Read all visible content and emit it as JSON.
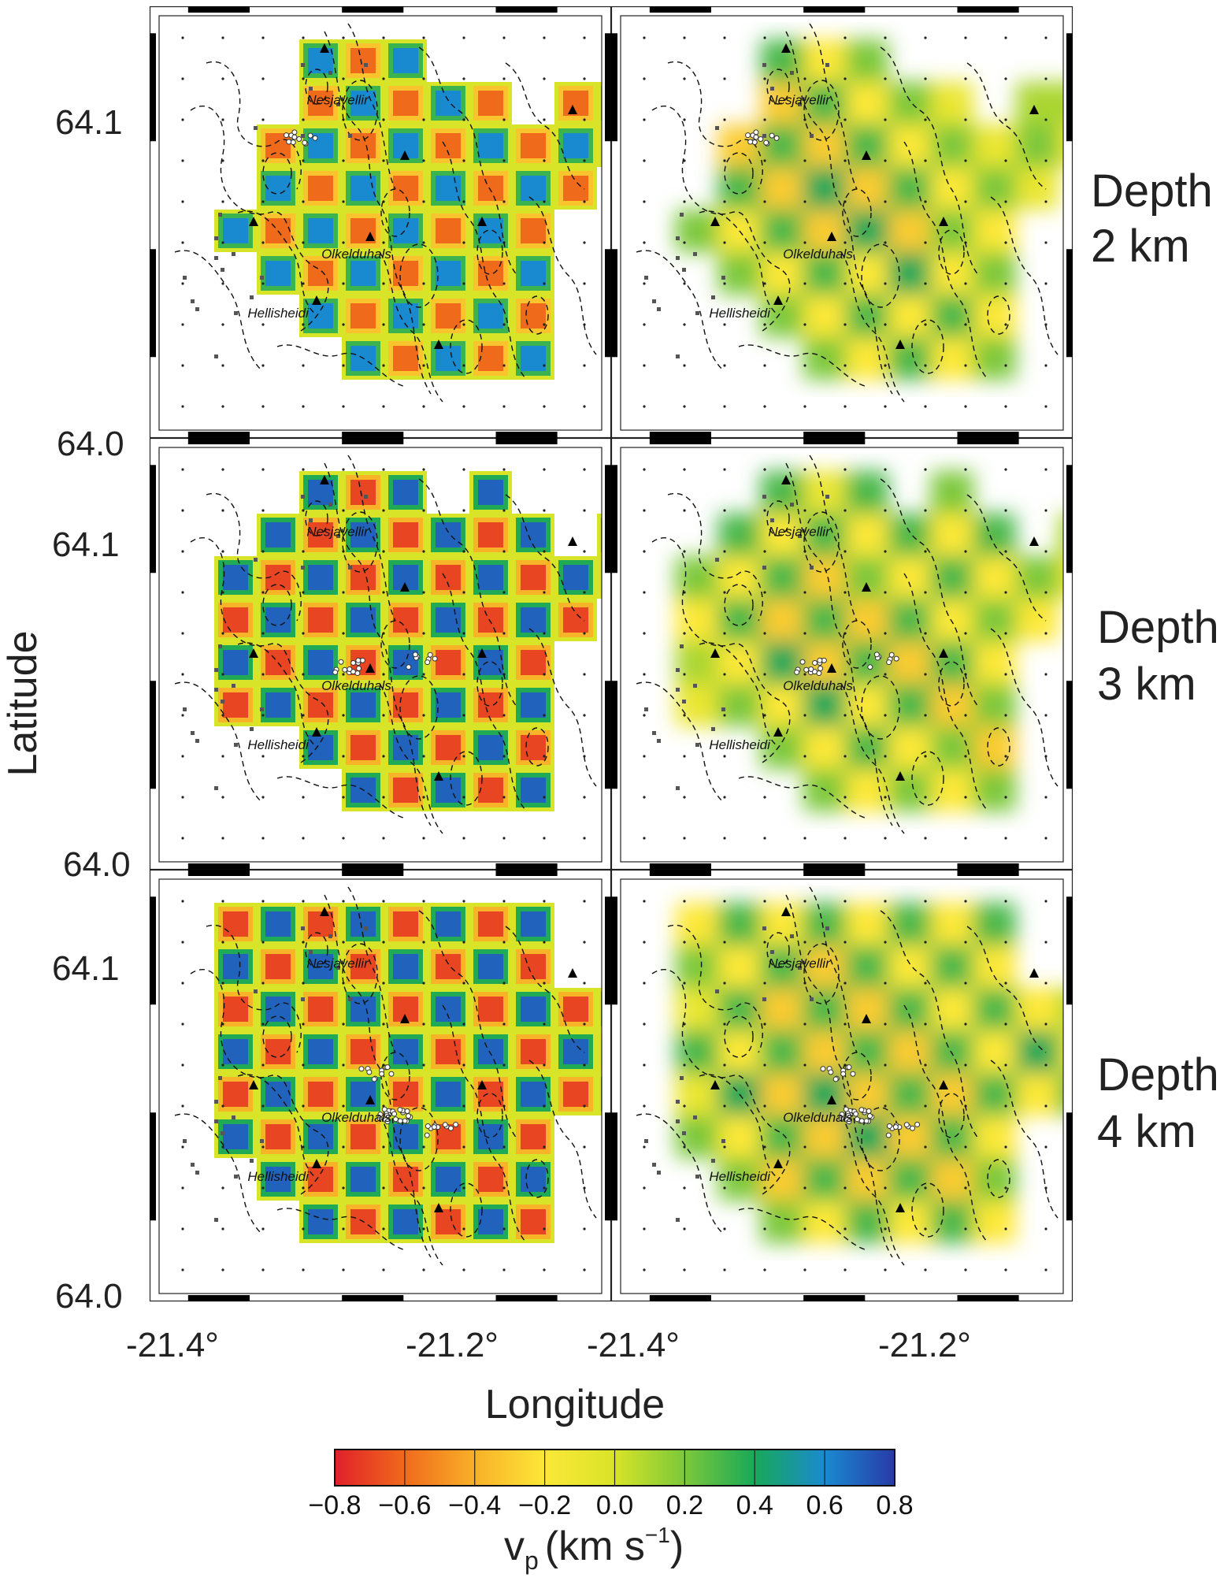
{
  "axes": {
    "ylabel": "Latitude",
    "xlabel": "Longitude",
    "lat_ticks": [
      "64.1",
      "64.0"
    ],
    "lon_ticks": [
      "-21.4°",
      "-21.2°"
    ],
    "lat_range": [
      64.0,
      64.14
    ],
    "lon_range": [
      -21.4,
      -21.1
    ]
  },
  "rows": [
    {
      "depth_label_1": "Depth",
      "depth_label_2": "2 km"
    },
    {
      "depth_label_1": "Depth",
      "depth_label_2": "3 km"
    },
    {
      "depth_label_1": "Depth",
      "depth_label_2": "4 km"
    }
  ],
  "places": [
    {
      "name": "Nesjavellir",
      "lon": -21.3,
      "lat": 64.11
    },
    {
      "name": "Olkelduhals",
      "lon": -21.29,
      "lat": 64.058
    },
    {
      "name": "Hellisheidi",
      "lon": -21.34,
      "lat": 64.038
    }
  ],
  "colorbar": {
    "ticks": [
      "−0.8",
      "−0.6",
      "−0.4",
      "−0.2",
      "0.0",
      "0.2",
      "0.4",
      "0.6",
      "0.8"
    ],
    "label_main": "v",
    "label_sub": "p",
    "label_unit": "(km s",
    "label_sup": "−1",
    "label_close": ")",
    "colors": [
      "#e0202a",
      "#f06a1c",
      "#f8b028",
      "#fce838",
      "#d8e428",
      "#7cc83a",
      "#18a858",
      "#1a8ad0",
      "#283aa8"
    ]
  },
  "chart_data": {
    "type": "heatmap",
    "panels": [
      {
        "row": 0,
        "col": 0,
        "name": "checkerboard input 2 km"
      },
      {
        "row": 0,
        "col": 1,
        "name": "checkerboard recovered 2 km"
      },
      {
        "row": 1,
        "col": 0,
        "name": "checkerboard input 3 km"
      },
      {
        "row": 1,
        "col": 1,
        "name": "checkerboard recovered 3 km"
      },
      {
        "row": 2,
        "col": 0,
        "name": "checkerboard input 4 km"
      },
      {
        "row": 2,
        "col": 1,
        "name": "checkerboard recovered 4 km"
      }
    ],
    "value_range": [
      -0.8,
      0.8
    ],
    "masks": [
      [
        "0011100000",
        "0011111011",
        "0111111111",
        "0111111110",
        "1111111100",
        "0111111100",
        "0011111100",
        "0001111100"
      ],
      [
        "0011101000",
        "0111111101",
        "1111111111",
        "1111111110",
        "1111111100",
        "1111111100",
        "0011111100",
        "0001111100"
      ],
      [
        "1111111100",
        "1111111100",
        "1111111111",
        "1111111111",
        "1111111111",
        "1111111100",
        "0111111100",
        "0011111100"
      ]
    ],
    "input_values": [
      [
        [
          0.6,
          -0.6,
          0.6,
          -0.6,
          0.6,
          -0.6,
          0.6,
          -0.6,
          0.6,
          -0.6
        ],
        [
          -0.6,
          0.6,
          -0.6,
          0.6,
          -0.6,
          0.6,
          -0.6,
          0.6,
          -0.6,
          0.6
        ],
        [
          0.6,
          -0.6,
          0.6,
          -0.6,
          0.6,
          -0.6,
          0.6,
          -0.6,
          0.6,
          -0.6
        ],
        [
          -0.6,
          0.6,
          -0.6,
          0.6,
          -0.6,
          0.6,
          -0.6,
          0.6,
          -0.6,
          0.6
        ],
        [
          0.6,
          -0.6,
          0.6,
          -0.6,
          0.6,
          -0.6,
          0.6,
          -0.6,
          0.6,
          -0.6
        ],
        [
          -0.6,
          0.6,
          -0.6,
          0.6,
          -0.6,
          0.6,
          -0.6,
          0.6,
          -0.6,
          0.6
        ],
        [
          0.6,
          -0.6,
          0.6,
          -0.6,
          0.6,
          -0.6,
          0.6,
          -0.6,
          0.6,
          -0.6
        ],
        [
          -0.6,
          0.6,
          -0.6,
          0.6,
          -0.6,
          0.6,
          -0.6,
          0.6,
          -0.6,
          0.6
        ]
      ],
      [
        [
          0.7,
          -0.7,
          0.7,
          -0.7,
          0.7,
          -0.7,
          0.7,
          -0.7,
          0.7,
          -0.7
        ],
        [
          -0.7,
          0.7,
          -0.7,
          0.7,
          -0.7,
          0.7,
          -0.7,
          0.7,
          -0.7,
          0.7
        ],
        [
          0.7,
          -0.7,
          0.7,
          -0.7,
          0.7,
          -0.7,
          0.7,
          -0.7,
          0.7,
          -0.7
        ],
        [
          -0.7,
          0.7,
          -0.7,
          0.7,
          -0.7,
          0.7,
          -0.7,
          0.7,
          -0.7,
          0.7
        ],
        [
          0.7,
          -0.7,
          0.7,
          -0.7,
          0.7,
          -0.7,
          0.7,
          -0.7,
          0.7,
          -0.7
        ],
        [
          -0.7,
          0.7,
          -0.7,
          0.7,
          -0.7,
          0.7,
          -0.7,
          0.7,
          -0.7,
          0.7
        ],
        [
          0.7,
          -0.7,
          0.7,
          -0.7,
          0.7,
          -0.7,
          0.7,
          -0.7,
          0.7,
          -0.7
        ],
        [
          -0.7,
          0.7,
          -0.7,
          0.7,
          -0.7,
          0.7,
          -0.7,
          0.7,
          -0.7,
          0.7
        ]
      ],
      [
        [
          -0.7,
          0.7,
          -0.7,
          0.7,
          -0.7,
          0.7,
          -0.7,
          0.7,
          -0.7,
          0.7
        ],
        [
          0.7,
          -0.7,
          0.7,
          -0.7,
          0.7,
          -0.7,
          0.7,
          -0.7,
          0.7,
          -0.7
        ],
        [
          -0.7,
          0.7,
          -0.7,
          0.7,
          -0.7,
          0.7,
          -0.7,
          0.7,
          -0.7,
          0.7
        ],
        [
          0.7,
          -0.7,
          0.7,
          -0.7,
          0.7,
          -0.7,
          0.7,
          -0.7,
          0.7,
          -0.7
        ],
        [
          -0.7,
          0.7,
          -0.7,
          0.7,
          -0.7,
          0.7,
          -0.7,
          0.7,
          -0.7,
          0.7
        ],
        [
          0.7,
          -0.7,
          0.7,
          -0.7,
          0.7,
          -0.7,
          0.7,
          -0.7,
          0.7,
          -0.7
        ],
        [
          -0.7,
          0.7,
          -0.7,
          0.7,
          -0.7,
          0.7,
          -0.7,
          0.7,
          -0.7,
          0.7
        ],
        [
          0.7,
          -0.7,
          0.7,
          -0.7,
          0.7,
          -0.7,
          0.7,
          -0.7,
          0.7,
          -0.7
        ]
      ]
    ],
    "recovered_values": [
      [
        [
          0.3,
          -0.2,
          0.3,
          -0.2,
          0.2,
          -0.1,
          0.2,
          -0.1,
          0.2,
          0.1
        ],
        [
          -0.2,
          0.3,
          -0.3,
          0.3,
          -0.2,
          0.2,
          -0.1,
          0.2,
          0.1,
          0.1
        ],
        [
          0.2,
          -0.3,
          0.3,
          -0.3,
          0.3,
          -0.2,
          0.2,
          -0.1,
          0.2,
          -0.1
        ],
        [
          -0.2,
          0.3,
          -0.3,
          0.4,
          -0.3,
          0.3,
          -0.2,
          0.2,
          -0.1,
          0.1
        ],
        [
          0.2,
          -0.2,
          0.3,
          -0.3,
          0.4,
          -0.3,
          0.2,
          -0.2,
          0.1,
          0.0
        ],
        [
          -0.1,
          0.2,
          -0.2,
          0.3,
          -0.2,
          0.4,
          -0.2,
          0.2,
          -0.1,
          0.1
        ],
        [
          0.1,
          -0.1,
          0.2,
          -0.2,
          0.3,
          -0.2,
          0.3,
          -0.2,
          0.1,
          0.0
        ],
        [
          0.0,
          0.1,
          -0.1,
          0.2,
          -0.2,
          0.3,
          -0.2,
          0.2,
          0.0,
          0.0
        ]
      ],
      [
        [
          0.3,
          -0.2,
          0.3,
          -0.1,
          0.3,
          -0.2,
          0.2,
          -0.1,
          0.2,
          -0.1
        ],
        [
          -0.1,
          0.3,
          -0.2,
          0.3,
          -0.2,
          0.3,
          -0.2,
          0.3,
          -0.1,
          0.1
        ],
        [
          0.2,
          -0.2,
          0.3,
          -0.3,
          0.2,
          -0.2,
          0.3,
          -0.2,
          0.2,
          -0.1
        ],
        [
          -0.2,
          0.3,
          -0.3,
          0.3,
          -0.3,
          0.3,
          -0.2,
          0.2,
          -0.2,
          0.1
        ],
        [
          0.1,
          -0.2,
          0.4,
          -0.3,
          0.3,
          -0.3,
          0.3,
          -0.2,
          0.2,
          0.0
        ],
        [
          -0.1,
          0.2,
          -0.2,
          0.4,
          -0.2,
          0.3,
          -0.3,
          0.2,
          -0.1,
          0.1
        ],
        [
          0.1,
          -0.1,
          0.2,
          -0.2,
          0.3,
          -0.2,
          0.2,
          -0.3,
          0.1,
          0.0
        ],
        [
          0.0,
          0.1,
          -0.1,
          0.2,
          -0.2,
          0.2,
          -0.2,
          0.2,
          0.0,
          0.0
        ]
      ],
      [
        [
          -0.2,
          0.3,
          -0.2,
          0.3,
          -0.2,
          0.3,
          -0.2,
          0.3,
          -0.1,
          0.1
        ],
        [
          0.2,
          -0.2,
          0.3,
          -0.3,
          0.3,
          -0.2,
          0.3,
          -0.2,
          0.2,
          -0.1
        ],
        [
          -0.1,
          0.3,
          -0.3,
          0.3,
          -0.3,
          0.3,
          -0.2,
          0.3,
          -0.2,
          0.1
        ],
        [
          0.3,
          -0.2,
          0.3,
          -0.3,
          0.3,
          -0.3,
          0.3,
          -0.2,
          0.4,
          -0.1
        ],
        [
          -0.1,
          0.4,
          -0.3,
          0.4,
          -0.3,
          0.3,
          -0.3,
          0.3,
          -0.2,
          0.3
        ],
        [
          0.2,
          -0.2,
          0.3,
          -0.3,
          0.4,
          -0.3,
          0.3,
          -0.2,
          0.2,
          -0.1
        ],
        [
          -0.1,
          0.2,
          -0.3,
          0.3,
          -0.3,
          0.3,
          -0.3,
          0.2,
          -0.1,
          0.1
        ],
        [
          0.1,
          -0.1,
          0.2,
          -0.2,
          0.3,
          -0.2,
          0.3,
          -0.2,
          0.1,
          0.0
        ]
      ]
    ]
  }
}
